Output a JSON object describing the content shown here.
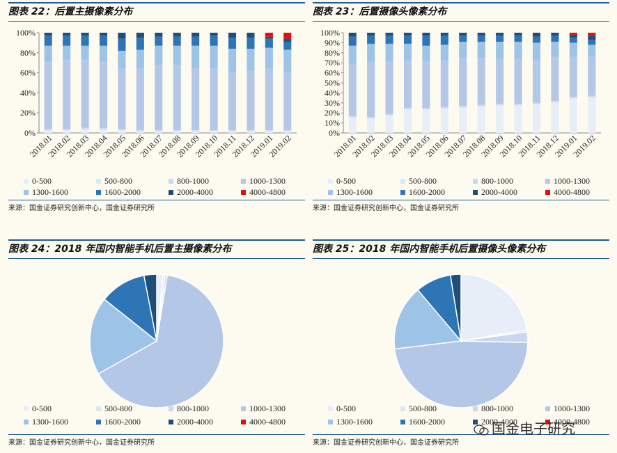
{
  "legend": [
    "0-500",
    "500-800",
    "800-1000",
    "1000-1300",
    "1300-1600",
    "1600-2000",
    "2000-4000",
    "4000-4800"
  ],
  "colors": [
    "#e7eef8",
    "#dde7f4",
    "#c9d8ee",
    "#b5c7e6",
    "#9dc3e6",
    "#2e75b6",
    "#1f4e79",
    "#e01010"
  ],
  "chart_data": [
    {
      "type": "bar",
      "stacked": true,
      "title": "图表 22：后置主摄像素分布",
      "categories": [
        "2018.01",
        "2018.02",
        "2018.03",
        "2018.04",
        "2018.05",
        "2018.06",
        "2018.07",
        "2018.08",
        "2018.09",
        "2018.10",
        "2018.11",
        "2018.12",
        "2019.01",
        "2019.02"
      ],
      "ylim": [
        0,
        100
      ],
      "yticks": [
        "0%",
        "20%",
        "40%",
        "60%",
        "80%",
        "100%"
      ],
      "series": [
        {
          "name": "0-500",
          "values": [
            2,
            2,
            3,
            3,
            2,
            1,
            1,
            1,
            1,
            1,
            1,
            1,
            1,
            1
          ]
        },
        {
          "name": "500-800",
          "values": [
            1,
            1,
            1,
            1,
            1,
            1,
            1,
            1,
            1,
            1,
            1,
            1,
            1,
            1
          ]
        },
        {
          "name": "800-1000",
          "values": [
            1,
            1,
            1,
            1,
            1,
            1,
            1,
            1,
            1,
            1,
            1,
            1,
            1,
            1
          ]
        },
        {
          "name": "1000-1300",
          "values": [
            67,
            69,
            68,
            66,
            60,
            61,
            65,
            65,
            62,
            61,
            58,
            59,
            61,
            58
          ]
        },
        {
          "name": "1300-1600",
          "values": [
            16,
            14,
            14,
            16,
            18,
            19,
            19,
            19,
            22,
            23,
            23,
            22,
            21,
            22
          ]
        },
        {
          "name": "1600-2000",
          "values": [
            10,
            10,
            10,
            10,
            12,
            12,
            9,
            9,
            9,
            10,
            11,
            11,
            9,
            8
          ]
        },
        {
          "name": "2000-4000",
          "values": [
            3,
            3,
            3,
            3,
            6,
            5,
            4,
            4,
            4,
            3,
            5,
            5,
            2,
            3
          ]
        },
        {
          "name": "4000-4800",
          "values": [
            0,
            0,
            0,
            0,
            0,
            0,
            0,
            0,
            0,
            0,
            0,
            0,
            4,
            6
          ]
        }
      ],
      "source": "来源：国金证券研究创新中心，国金证券研究所"
    },
    {
      "type": "bar",
      "stacked": true,
      "title": "图表 23：后置摄像头像素分布",
      "categories": [
        "2018.01",
        "2018.02",
        "2018.03",
        "2018.04",
        "2018.05",
        "2018.06",
        "2018.07",
        "2018.08",
        "2018.09",
        "2018.10",
        "2018.11",
        "2018.12",
        "2019.01",
        "2019.02"
      ],
      "ylim": [
        0,
        100
      ],
      "yticks": [
        "0%",
        "10%",
        "20%",
        "30%",
        "40%",
        "50%",
        "60%",
        "70%",
        "80%",
        "90%",
        "100%"
      ],
      "series": [
        {
          "name": "0-500",
          "values": [
            15,
            14,
            17,
            23,
            23,
            24,
            25,
            26,
            27,
            27,
            28,
            30,
            34,
            35
          ]
        },
        {
          "name": "500-800",
          "values": [
            1,
            1,
            1,
            1,
            1,
            1,
            1,
            1,
            1,
            1,
            1,
            1,
            1,
            1
          ]
        },
        {
          "name": "800-1000",
          "values": [
            1,
            1,
            1,
            1,
            1,
            1,
            1,
            1,
            1,
            1,
            1,
            1,
            1,
            1
          ]
        },
        {
          "name": "1000-1300",
          "values": [
            52,
            55,
            52,
            47,
            46,
            46,
            48,
            47,
            45,
            45,
            43,
            44,
            40,
            39
          ]
        },
        {
          "name": "1300-1600",
          "values": [
            18,
            18,
            18,
            17,
            16,
            16,
            16,
            16,
            17,
            17,
            17,
            15,
            14,
            12
          ]
        },
        {
          "name": "1600-2000",
          "values": [
            9,
            8,
            8,
            8,
            10,
            9,
            6,
            6,
            6,
            6,
            6,
            6,
            5,
            5
          ]
        },
        {
          "name": "2000-4000",
          "values": [
            4,
            3,
            3,
            3,
            3,
            3,
            3,
            3,
            3,
            3,
            4,
            3,
            3,
            4
          ]
        },
        {
          "name": "4000-4800",
          "values": [
            0,
            0,
            0,
            0,
            0,
            0,
            0,
            0,
            0,
            0,
            0,
            0,
            2,
            3
          ]
        }
      ],
      "source": "来源：国金证券研究创新中心，国金证券研究所"
    },
    {
      "type": "pie",
      "title": "图表 24：2018 年国内智能手机后置主摄像素分布",
      "labels": [
        "0-500",
        "500-800",
        "800-1000",
        "1000-1300",
        "1300-1600",
        "1600-2000",
        "2000-4000",
        "4000-4800"
      ],
      "values": [
        1.5,
        0.5,
        0.5,
        63,
        18.5,
        11,
        3,
        0
      ],
      "source": "来源：国金证券研究创新中心，国金证券研究所"
    },
    {
      "type": "pie",
      "title": "图表 25：2018 年国内智能手机后置摄像头像素分布",
      "labels": [
        "0-500",
        "500-800",
        "800-1000",
        "1000-1300",
        "1300-1600",
        "1600-2000",
        "2000-4000",
        "4000-4800"
      ],
      "values": [
        22,
        0.5,
        2.5,
        47,
        15.5,
        8.5,
        2.5,
        0
      ],
      "source": "来源：国金证券研究创新中心，国金证券研究所"
    }
  ],
  "watermark": "国金电子研究"
}
